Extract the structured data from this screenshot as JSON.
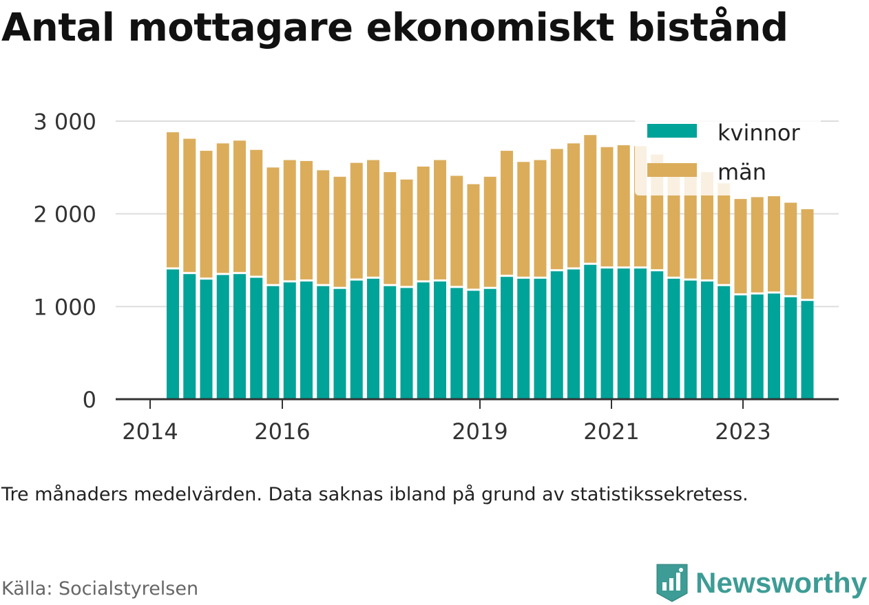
{
  "title": "Antal mottagare ekonomiskt bistånd",
  "note": "Tre månaders medelvärden. Data saknas ibland på grund av statistikssekretess.",
  "source": "Källa: Socialstyrelsen",
  "brand": "Newsworthy",
  "colors": {
    "kvinnor": "#00a398",
    "man": "#dbad5b",
    "grid": "#dddddd",
    "axis": "#333333",
    "brand": "#3d9c95"
  },
  "chart_data": {
    "type": "bar",
    "stacked": true,
    "x_tick_labels": [
      "2014",
      "2016",
      "2019",
      "2021",
      "2023"
    ],
    "y_tick_labels": [
      "0",
      "1 000",
      "2 000",
      "3 000"
    ],
    "ylim": [
      0,
      3000
    ],
    "grid": "horizontal",
    "legend_position": "top-right",
    "series": [
      {
        "name": "kvinnor",
        "values": [
          1400,
          1350,
          1290,
          1340,
          1350,
          1310,
          1220,
          1260,
          1270,
          1220,
          1190,
          1280,
          1300,
          1220,
          1200,
          1260,
          1270,
          1200,
          1170,
          1190,
          1320,
          1300,
          1300,
          1380,
          1400,
          1450,
          1410,
          1410,
          1410,
          1380,
          1300,
          1280,
          1270,
          1220,
          1120,
          1130,
          1140,
          1100,
          1060
        ]
      },
      {
        "name": "män",
        "values": [
          1480,
          1460,
          1390,
          1420,
          1440,
          1380,
          1280,
          1320,
          1300,
          1250,
          1210,
          1270,
          1280,
          1230,
          1170,
          1250,
          1310,
          1210,
          1150,
          1210,
          1360,
          1260,
          1280,
          1320,
          1360,
          1400,
          1310,
          1330,
          1320,
          1260,
          1110,
          1120,
          1180,
          1110,
          1040,
          1050,
          1050,
          1020,
          990
        ]
      }
    ]
  }
}
